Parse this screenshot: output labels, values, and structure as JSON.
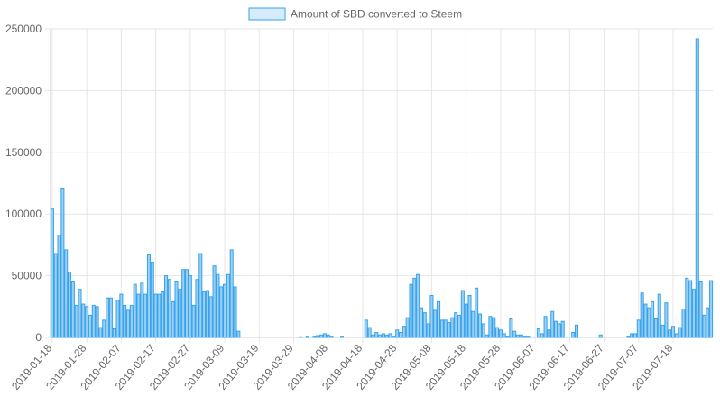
{
  "chart_data": {
    "type": "bar",
    "legend": {
      "label": "Amount of SBD converted to Steem",
      "position": "top"
    },
    "colors": {
      "bar_fill": "#9ad0f5",
      "bar_stroke": "#36a2eb",
      "grid": "#e6e6e6",
      "axis_text": "#666666"
    },
    "ylim": [
      0,
      250000
    ],
    "yticks": [
      0,
      50000,
      100000,
      150000,
      200000,
      250000
    ],
    "xtick_labels": [
      "2019-01-18",
      "2019-01-28",
      "2019-02-07",
      "2019-02-17",
      "2019-02-27",
      "2019-03-09",
      "2019-03-19",
      "2019-03-29",
      "2019-04-08",
      "2019-04-18",
      "2019-04-28",
      "2019-05-08",
      "2019-05-18",
      "2019-05-28",
      "2019-06-07",
      "2019-06-17",
      "2019-06-27",
      "2019-07-07",
      "2019-07-18"
    ],
    "start_date": "2019-01-18",
    "grid": true,
    "values": [
      104000,
      68000,
      83000,
      121000,
      71000,
      53000,
      45000,
      26000,
      39000,
      27000,
      25000,
      18000,
      26000,
      25000,
      8000,
      14000,
      32000,
      32000,
      7000,
      30000,
      35000,
      26000,
      22000,
      26000,
      43000,
      35000,
      44000,
      35000,
      67000,
      61000,
      35000,
      35000,
      37000,
      50000,
      47000,
      29000,
      45000,
      39000,
      55000,
      55000,
      50000,
      26000,
      47000,
      68000,
      37000,
      38000,
      33000,
      58000,
      51000,
      41000,
      43000,
      51000,
      71000,
      41000,
      5000,
      0,
      0,
      0,
      0,
      0,
      0,
      0,
      0,
      0,
      0,
      0,
      0,
      0,
      0,
      0,
      0,
      0,
      500,
      0,
      1000,
      0,
      1000,
      1500,
      2000,
      3000,
      2000,
      1000,
      0,
      0,
      1000,
      0,
      0,
      0,
      0,
      0,
      0,
      14000,
      8000,
      2000,
      4000,
      2000,
      3000,
      2000,
      3000,
      1000,
      6000,
      4000,
      9000,
      16000,
      43000,
      48000,
      51000,
      24000,
      20000,
      11000,
      34000,
      22000,
      29000,
      14000,
      14000,
      12000,
      16000,
      20000,
      18000,
      38000,
      27000,
      34000,
      21000,
      40000,
      19000,
      11000,
      2000,
      17000,
      16000,
      8000,
      6000,
      3000,
      1000,
      15000,
      5000,
      2000,
      2000,
      1000,
      1000,
      0,
      0,
      7000,
      3000,
      17000,
      6000,
      21000,
      13000,
      11000,
      13000,
      0,
      0,
      4000,
      10000,
      0,
      0,
      0,
      0,
      0,
      0,
      2000,
      0,
      0,
      0,
      0,
      0,
      0,
      0,
      1000,
      3000,
      3000,
      14000,
      36000,
      27000,
      24000,
      29000,
      15000,
      35000,
      10000,
      28000,
      6000,
      9000,
      3000,
      8000,
      23000,
      48000,
      46000,
      39000,
      242000,
      45000,
      18000,
      24000,
      46000
    ]
  }
}
